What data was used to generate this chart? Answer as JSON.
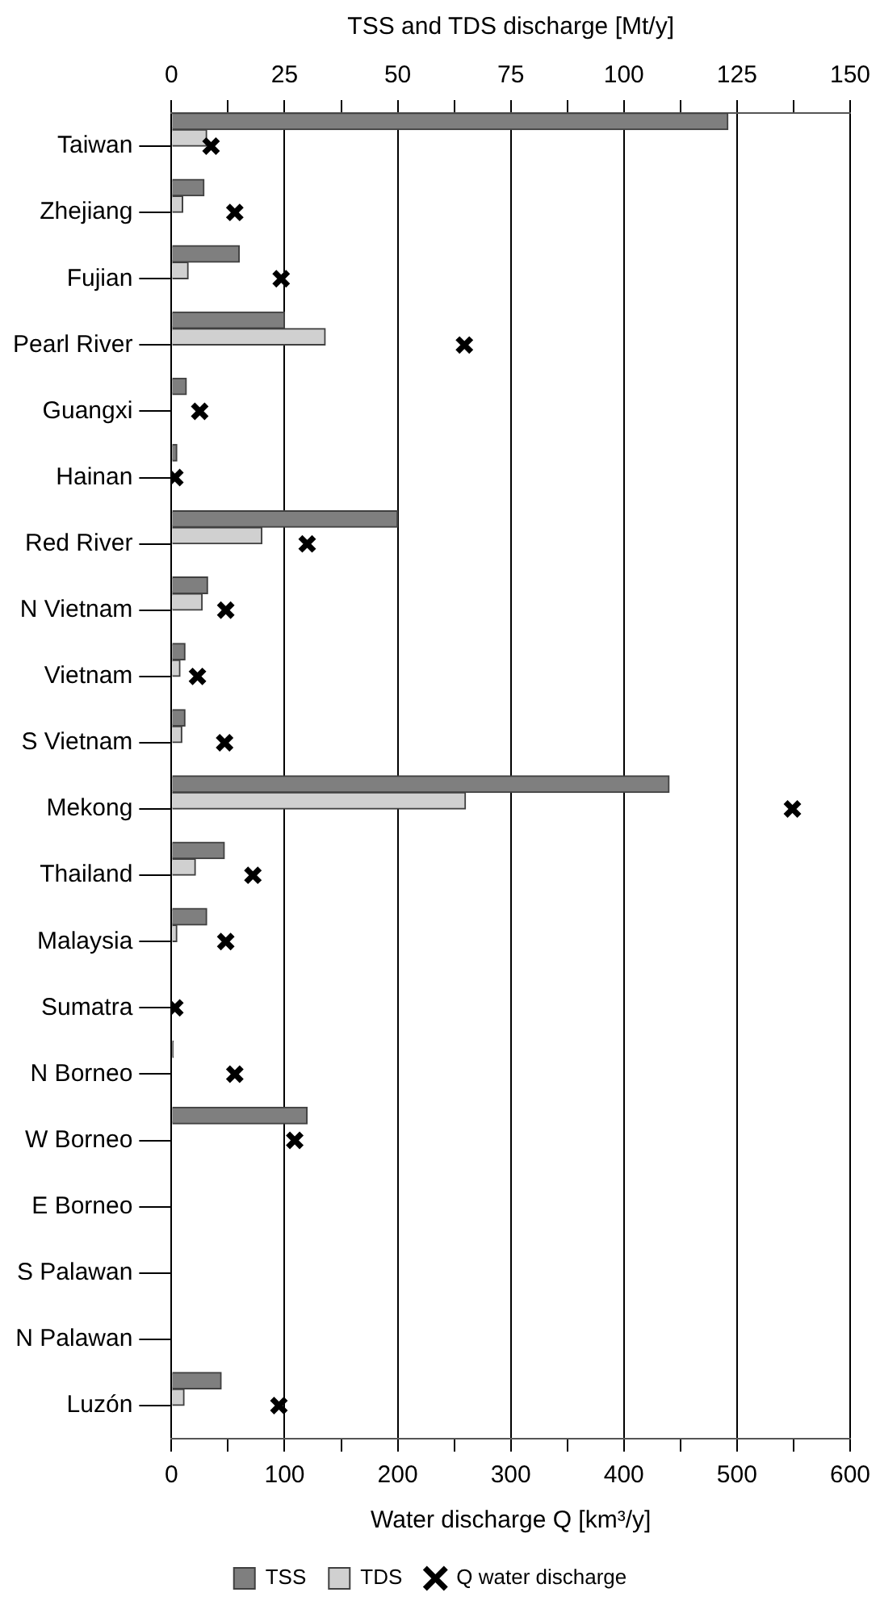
{
  "chart_data": {
    "type": "bar",
    "orientation": "horizontal",
    "categories": [
      "Taiwan",
      "Zhejiang",
      "Fujian",
      "Pearl River",
      "Guangxi",
      "Hainan",
      "Red River",
      "N Vietnam",
      "Vietnam",
      "S Vietnam",
      "Mekong",
      "Thailand",
      "Malaysia",
      "Sumatra",
      "N Borneo",
      "W Borneo",
      "E Borneo",
      "S Palawan",
      "N Palawan",
      "Luzón"
    ],
    "series": [
      {
        "name": "TSS",
        "axis": "x2",
        "color": "#7f7f7f",
        "values": [
          123,
          7.2,
          15,
          25,
          3.3,
          1.2,
          50,
          8,
          3,
          3,
          110,
          11.7,
          7.8,
          null,
          0.4,
          30,
          null,
          null,
          null,
          11
        ]
      },
      {
        "name": "TDS",
        "axis": "x2",
        "color": "#d0d0d0",
        "values": [
          7.8,
          2.5,
          3.7,
          34,
          null,
          null,
          20,
          6.8,
          1.9,
          2.3,
          65,
          5.3,
          1.2,
          null,
          null,
          null,
          null,
          null,
          null,
          2.8
        ]
      },
      {
        "name": "Q water discharge",
        "type": "scatter",
        "marker": "cross",
        "color": "#000000",
        "values": [
          35,
          56,
          97,
          259,
          25,
          3,
          120,
          48,
          23,
          47,
          549,
          72,
          48,
          3,
          56,
          109,
          null,
          null,
          null,
          95
        ]
      }
    ],
    "xlabel": "Water discharge Q [km³/y]",
    "xlim": [
      0,
      600
    ],
    "xticks": [
      0,
      {
        "value": 50,
        "label": null
      },
      100,
      {
        "value": 150,
        "label": null
      },
      200,
      {
        "value": 250,
        "label": null
      },
      300,
      {
        "value": 350,
        "label": null
      },
      400,
      {
        "value": 450,
        "label": null
      },
      500,
      {
        "value": 550,
        "label": null
      },
      600
    ],
    "x2label": "TSS and TDS discharge [Mt/y]",
    "x2lim": [
      0,
      150
    ],
    "x2ticks": [
      0,
      {
        "value": 12.5,
        "label": null
      },
      25,
      {
        "value": 37.5,
        "label": null
      },
      50,
      {
        "value": 62.5,
        "label": null
      },
      75,
      {
        "value": 87.5,
        "label": null
      },
      100,
      {
        "value": 112.5,
        "label": null
      },
      125,
      {
        "value": 137.5,
        "label": null
      },
      150
    ],
    "grid": "x",
    "legend": "bottom"
  }
}
